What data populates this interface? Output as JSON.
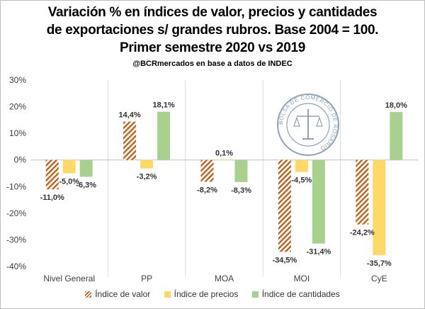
{
  "header": {
    "title_line1": "Variación % en índices de valor, precios y cantidades",
    "title_line2": "de exportaciones s/ grandes rubros. Base 2004 = 100.",
    "title_line3": "Primer semestre 2020 vs 2019",
    "source": "@BCRmercados en base a datos de INDEC"
  },
  "watermark": {
    "text": "BOLSA DE COMERCIO DE ROSARIO"
  },
  "colors": {
    "valor": "#c55a11",
    "precios": "#ffd966",
    "cantidades": "#a9d18e"
  },
  "chart_data": {
    "type": "bar",
    "categories": [
      "Nivel General",
      "PP",
      "MOA",
      "MOI",
      "CyE"
    ],
    "series": [
      {
        "name": "Índice de valor",
        "values": [
          -11.0,
          14.4,
          -8.2,
          -34.5,
          -24.2
        ],
        "labels": [
          "-11,0%",
          "14,4%",
          "-8,2%",
          "-34,5%",
          "-24,2%"
        ]
      },
      {
        "name": "Índice de precios",
        "values": [
          -5.0,
          -3.2,
          0.1,
          -4.5,
          -35.7
        ],
        "labels": [
          "-5,0%",
          "-3,2%",
          "0,1%",
          "-4,5%",
          "-35,7%"
        ]
      },
      {
        "name": "Índice de cantidades",
        "values": [
          -6.3,
          18.1,
          -8.3,
          -31.4,
          18.0
        ],
        "labels": [
          "-6,3%",
          "18,1%",
          "-8,3%",
          "-31,4%",
          "18,0%"
        ]
      }
    ],
    "yticks": [
      30,
      20,
      10,
      0,
      -10,
      -20,
      -30,
      -40
    ],
    "ytick_labels": [
      "30%",
      "20%",
      "10%",
      "0%",
      "-10%",
      "-20%",
      "-30%",
      "-40%"
    ],
    "ylim": [
      -40,
      30
    ],
    "xlabel": "",
    "ylabel": "",
    "grid": "vertical separators between categories",
    "legend_position": "bottom"
  }
}
